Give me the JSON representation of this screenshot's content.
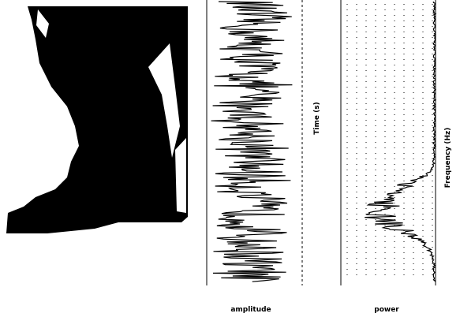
{
  "panels": {
    "waveform": {
      "xlabel": "amplitude",
      "ylabel": "Time (s)"
    },
    "spectrum": {
      "xlabel": "power",
      "ylabel": "Frequency (Hz)"
    }
  }
}
